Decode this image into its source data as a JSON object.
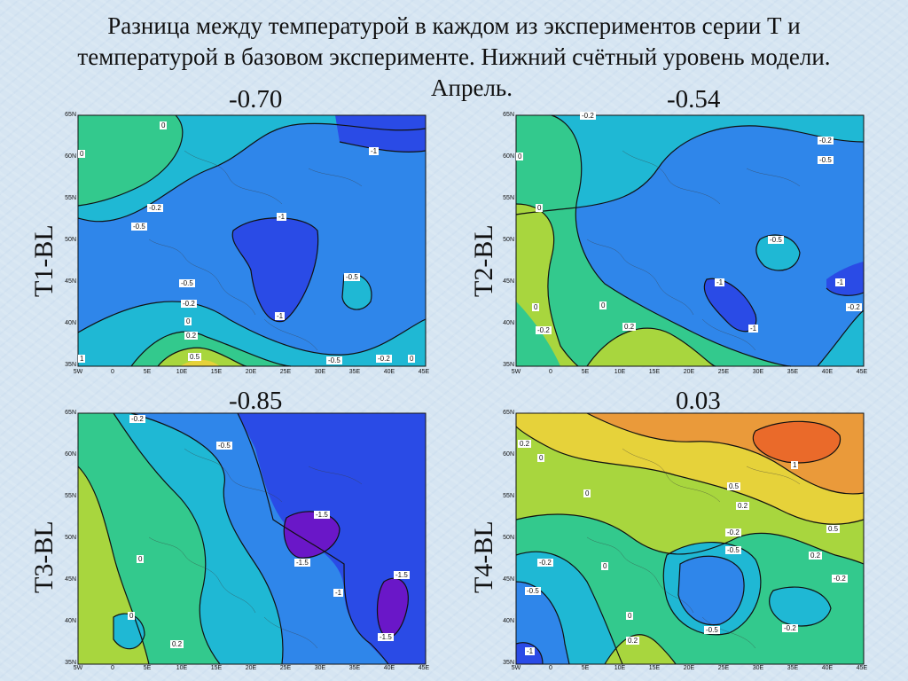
{
  "title": {
    "line1": "Разница между температурой в каждом из экспериментов серии  Т и",
    "line2": "температурой в базовом эксперименте. Нижний счётный уровень модели.",
    "line3": "Апрель."
  },
  "axes": {
    "lat_ticks": [
      "65N",
      "60N",
      "55N",
      "50N",
      "45N",
      "40N",
      "35N"
    ],
    "lon_ticks": [
      "5W",
      "0",
      "5E",
      "10E",
      "15E",
      "20E",
      "25E",
      "30E",
      "35E",
      "40E",
      "45E"
    ]
  },
  "colors": {
    "m1_5": "#6a17c8",
    "m1": "#2a4be6",
    "m0_5": "#2f86ea",
    "m0_2": "#1fb8d4",
    "zero": "#33c98d",
    "p0_2": "#a8d63e",
    "p0_5": "#e6d23a",
    "p1": "#ea9a3a"
  },
  "panels": [
    {
      "label": "T1-BL",
      "value": "-0.70",
      "contour_labels": [
        "0",
        "0",
        "-0.2",
        "-0.5",
        "-1",
        "-1",
        "-1",
        "-0.5",
        "-0.5",
        "-0.2",
        "0",
        "0.2",
        "0.5",
        "-0.5",
        "-0.2",
        "0",
        "1"
      ]
    },
    {
      "label": "T2-BL",
      "value": "-0.54",
      "contour_labels": [
        "-0.2",
        "-0.5",
        "0",
        "-0.5",
        "-1",
        "-1",
        "-1",
        "-0.2",
        "0",
        "-0.2",
        "0",
        "0.2",
        "-0.2",
        "0"
      ]
    },
    {
      "label": "T3-BL",
      "value": "-0.85",
      "contour_labels": [
        "-0.2",
        "-0.5",
        "-1.5",
        "-1.5",
        "-1",
        "-1.5",
        "-1.5",
        "0",
        "0",
        "0.2"
      ]
    },
    {
      "label": "T4-BL",
      "value": "0.03",
      "contour_labels": [
        "0.2",
        "0",
        "1",
        "0.5",
        "0",
        "0.2",
        "-0.2",
        "0.5",
        "-0.5",
        "-0.2",
        "0.2",
        "-0.2",
        "0",
        "-0.5",
        "0.2",
        "0",
        "-0.5",
        "-0.2",
        "-1"
      ]
    }
  ],
  "chart_data": [
    {
      "type": "heatmap",
      "title": "T1-BL",
      "xlabel": "",
      "ylabel": "",
      "xlim": [
        -5,
        45
      ],
      "ylim": [
        35,
        65
      ],
      "categories": [
        "-1",
        "-0.5",
        "-0.2",
        "0",
        "0.2",
        "0.5",
        "1"
      ],
      "mean_value": -0.7
    },
    {
      "type": "heatmap",
      "title": "T2-BL",
      "xlabel": "",
      "ylabel": "",
      "xlim": [
        -5,
        45
      ],
      "ylim": [
        35,
        65
      ],
      "categories": [
        "-1",
        "-0.5",
        "-0.2",
        "0",
        "0.2"
      ],
      "mean_value": -0.54
    },
    {
      "type": "heatmap",
      "title": "T3-BL",
      "xlabel": "",
      "ylabel": "",
      "xlim": [
        -5,
        45
      ],
      "ylim": [
        35,
        65
      ],
      "categories": [
        "-1.5",
        "-1",
        "-0.5",
        "-0.2",
        "0",
        "0.2"
      ],
      "mean_value": -0.85
    },
    {
      "type": "heatmap",
      "title": "T4-BL",
      "xlabel": "",
      "ylabel": "",
      "xlim": [
        -5,
        45
      ],
      "ylim": [
        35,
        65
      ],
      "categories": [
        "-1",
        "-0.5",
        "-0.2",
        "0",
        "0.2",
        "0.5",
        "1"
      ],
      "mean_value": 0.03
    }
  ]
}
